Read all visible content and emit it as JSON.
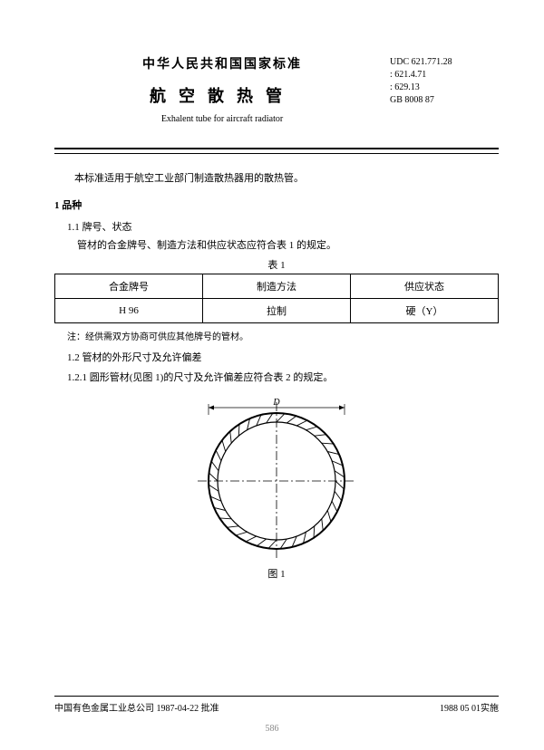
{
  "header": {
    "country_title": "中华人民共和国国家标准",
    "main_title": "航空散热管",
    "sub_title": "Exhalent tube for aircraft radiator",
    "codes": {
      "line1": "UDC 621.771.28",
      "line2": ": 621.4.71",
      "line3": ": 629.13",
      "line4": "GB 8008  87"
    }
  },
  "intro": "本标准适用于航空工业部门制造散热器用的散热管。",
  "section1": {
    "num": "1 品种",
    "s11_title": "1.1  牌号、状态",
    "s11_text": "管材的合金牌号、制造方法和供应状态应符合表 1 的规定。",
    "table1_label": "表 1",
    "table1": {
      "headers": [
        "合金牌号",
        "制造方法",
        "供应状态"
      ],
      "rows": [
        [
          "H 96",
          "拉制",
          "硬（Y）"
        ]
      ]
    },
    "note": "注：经供需双方协商可供应其他牌号的管材。",
    "s12_title": "1.2  管材的外形尺寸及允许偏差",
    "s121_text": "1.2.1  圆形管材(见图 1)的尺寸及允许偏差应符合表 2 的规定。",
    "figure_label": "图 1",
    "figure_dim_label": "D"
  },
  "figure": {
    "diameter": 150,
    "stroke_color": "#000000",
    "stroke_width": 2,
    "wall_width": 10,
    "hatch_count": 36
  },
  "footer": {
    "left": "中国有色金属工业总公司 1987-04-22 批准",
    "right": "1988 05 01实施",
    "page_num": "586"
  }
}
